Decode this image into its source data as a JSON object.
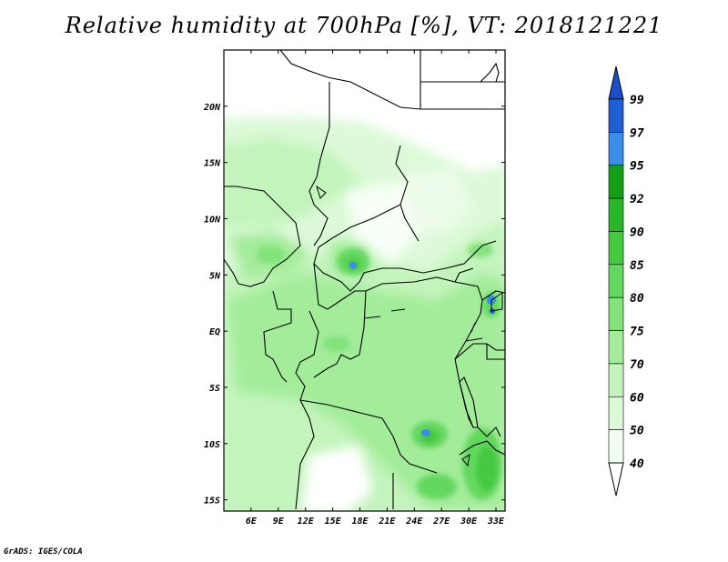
{
  "title": "Relative humidity at 700hPa [%], VT: 2018121221",
  "credit": "GrADS: IGES/COLA",
  "map": {
    "lon_range": [
      3,
      34
    ],
    "lat_range": [
      -16,
      25
    ],
    "x_ticks": [
      "6E",
      "9E",
      "12E",
      "15E",
      "18E",
      "21E",
      "24E",
      "27E",
      "30E",
      "33E"
    ],
    "y_ticks": [
      "20N",
      "15N",
      "10N",
      "5N",
      "EQ",
      "5S",
      "10S",
      "15S"
    ]
  },
  "colorbar": {
    "levels": [
      "99",
      "97",
      "95",
      "92",
      "90",
      "85",
      "80",
      "75",
      "70",
      "60",
      "50",
      "40"
    ],
    "colors": [
      "#1e5fd6",
      "#3a8de8",
      "#13a018",
      "#29b72a",
      "#44c93f",
      "#63d85e",
      "#82e37a",
      "#a3ec9a",
      "#c3f4bc",
      "#dcf9d8",
      "#f2fef0",
      "#ffffff"
    ],
    "top_arrow_color": "#1b4fc8",
    "bottom_arrow_color": "#ffffff"
  }
}
